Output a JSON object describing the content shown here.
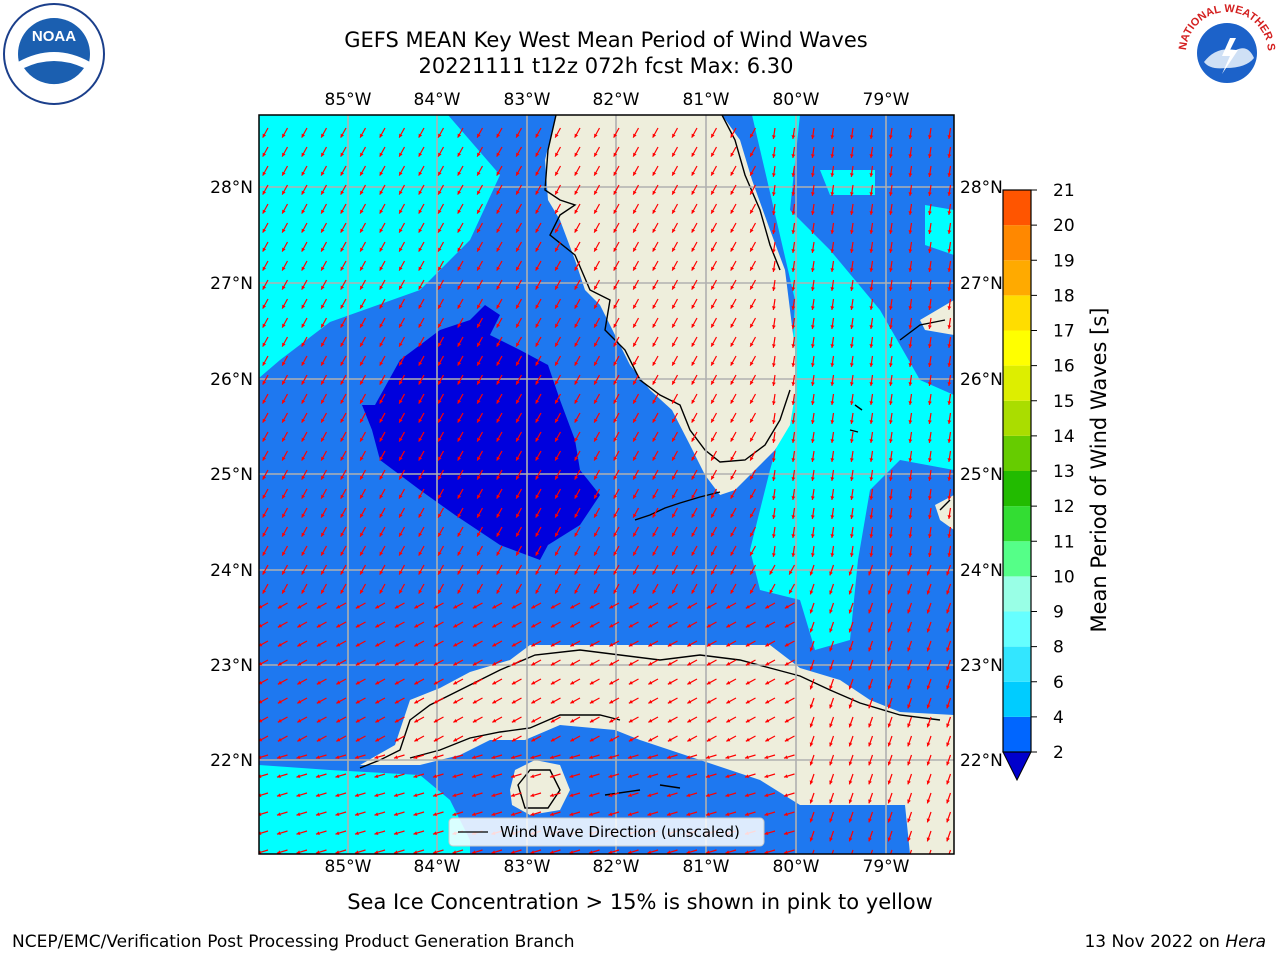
{
  "title_line1": "GEFS MEAN Key West Mean Period of Wind Waves",
  "title_line2": "20221111 t12z 072h fcst   Max: 6.30",
  "lon_ticks": [
    "85°W",
    "84°W",
    "83°W",
    "82°W",
    "81°W",
    "80°W",
    "79°W"
  ],
  "lat_ticks": [
    "28°N",
    "27°N",
    "26°N",
    "25°N",
    "24°N",
    "23°N",
    "22°N"
  ],
  "legend_label": "Wind Wave Direction (unscaled)",
  "colorbar": {
    "label": "Mean Period of Wind Waves [s]",
    "ticks": [
      "2",
      "4",
      "6",
      "8",
      "9",
      "10",
      "11",
      "12",
      "13",
      "14",
      "15",
      "16",
      "17",
      "18",
      "19",
      "20",
      "21"
    ],
    "colors": [
      "#0066ff",
      "#00ccff",
      "#33e6ff",
      "#66ffff",
      "#99ffe6",
      "#55ff88",
      "#33dd33",
      "#22bb00",
      "#66cc00",
      "#aadd00",
      "#ddee00",
      "#ffff00",
      "#ffdd00",
      "#ffaa00",
      "#ff8800",
      "#ff5500",
      "#ff2200",
      "#ff0000"
    ],
    "extend_color": "#0000cc"
  },
  "map_colors": {
    "dark": "#0000dd",
    "mid": "#1e78f0",
    "light": "#00ffff",
    "land": "#eeeedc",
    "arrow": "#ff0000",
    "grid": "#b0b0b0"
  },
  "note": "Sea Ice Concentration > 15% is shown in pink to yellow",
  "footer_left": "NCEP/EMC/Verification Post Processing Product Generation Branch",
  "footer_date": "13 Nov 2022 on",
  "footer_machine": "Hera",
  "logos": {
    "left": "NOAA",
    "right": "NATIONAL WEATHER SERVICE"
  }
}
